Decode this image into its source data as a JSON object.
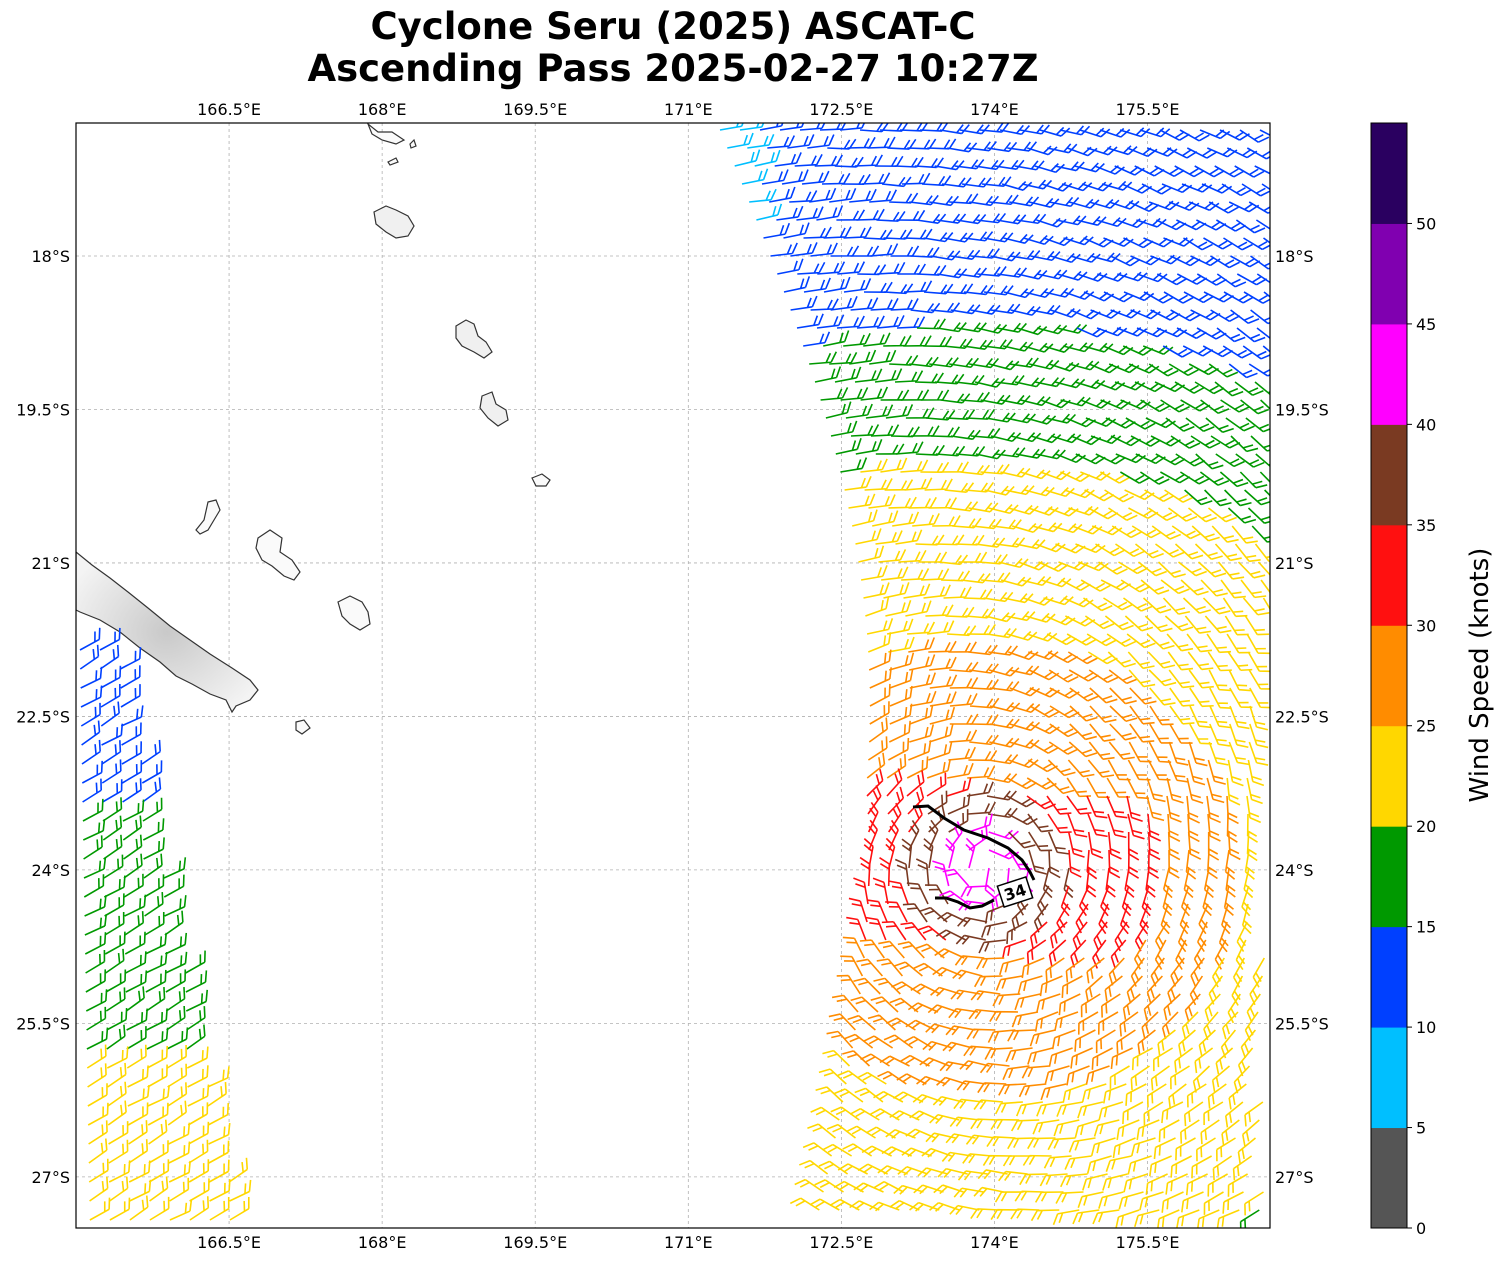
{
  "title_line1": "Cyclone Seru (2025) ASCAT-C",
  "title_line2": "Ascending Pass 2025-02-27 10:27Z",
  "map": {
    "lon_ticks": [
      "166.5°E",
      "168°E",
      "169.5°E",
      "171°E",
      "172.5°E",
      "174°E",
      "175.5°E"
    ],
    "lat_ticks": [
      "18°S",
      "19.5°S",
      "21°S",
      "22.5°S",
      "24°S",
      "25.5°S",
      "27°S"
    ],
    "lon_values": [
      166.5,
      168,
      169.5,
      171,
      172.5,
      174,
      175.5
    ],
    "lat_values": [
      -18,
      -19.5,
      -21,
      -22.5,
      -24,
      -25.5,
      -27
    ],
    "extent": {
      "lon_min": 165.0,
      "lon_max": 176.7,
      "lat_min": -27.5,
      "lat_max": -16.7
    },
    "grid": true,
    "wind_radius_label": "34",
    "wind_radius_color": "#000000"
  },
  "colorbar": {
    "label": "Wind Speed (knots)",
    "ticks": [
      "0",
      "5",
      "10",
      "15",
      "20",
      "25",
      "30",
      "35",
      "40",
      "45",
      "50"
    ],
    "colors": [
      "#555555",
      "#00bfff",
      "#0040ff",
      "#009900",
      "#ffd700",
      "#ff8c00",
      "#ff1010",
      "#7a3a22",
      "#ff00ff",
      "#8000b0",
      "#2a0060"
    ]
  }
}
